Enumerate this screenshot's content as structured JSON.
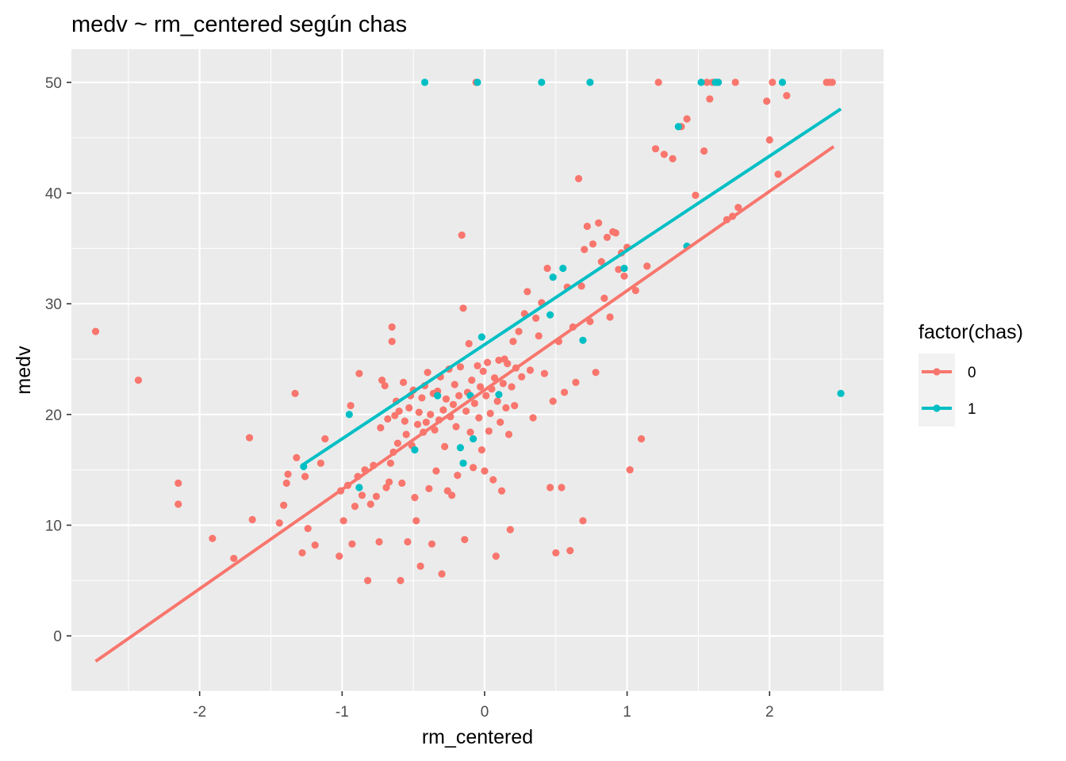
{
  "chart_data": {
    "type": "scatter",
    "title": "medv ~ rm_centered según chas",
    "xlabel": "rm_centered",
    "ylabel": "medv",
    "xlim": [
      -2.9,
      2.8
    ],
    "ylim": [
      -5,
      53
    ],
    "x_ticks": [
      -2,
      -1,
      0,
      1,
      2
    ],
    "y_ticks": [
      0,
      10,
      20,
      30,
      40,
      50
    ],
    "grid": true,
    "legend": {
      "title": "factor(chas)",
      "placement": "right"
    },
    "series": [
      {
        "name": "0",
        "color": "#F8766D",
        "points": [
          [
            -2.73,
            27.5
          ],
          [
            -2.43,
            23.1
          ],
          [
            -2.15,
            13.8
          ],
          [
            -2.15,
            11.9
          ],
          [
            -1.91,
            8.8
          ],
          [
            -1.76,
            7.0
          ],
          [
            -1.65,
            17.9
          ],
          [
            -1.63,
            10.5
          ],
          [
            -1.44,
            10.2
          ],
          [
            -1.41,
            11.8
          ],
          [
            -1.39,
            13.8
          ],
          [
            -1.38,
            14.6
          ],
          [
            -1.33,
            21.9
          ],
          [
            -1.32,
            16.1
          ],
          [
            -1.28,
            7.5
          ],
          [
            -1.26,
            14.4
          ],
          [
            -1.24,
            9.7
          ],
          [
            -1.19,
            8.2
          ],
          [
            -1.15,
            15.6
          ],
          [
            -1.12,
            17.8
          ],
          [
            -1.02,
            7.2
          ],
          [
            -1.01,
            13.1
          ],
          [
            -0.99,
            10.4
          ],
          [
            -0.96,
            13.6
          ],
          [
            -0.94,
            20.8
          ],
          [
            -0.93,
            8.3
          ],
          [
            -0.91,
            11.7
          ],
          [
            -0.89,
            14.4
          ],
          [
            -0.88,
            23.7
          ],
          [
            -0.86,
            12.7
          ],
          [
            -0.84,
            15.0
          ],
          [
            -0.82,
            5.0
          ],
          [
            -0.8,
            11.9
          ],
          [
            -0.78,
            15.4
          ],
          [
            -0.76,
            12.6
          ],
          [
            -0.74,
            8.5
          ],
          [
            -0.73,
            18.8
          ],
          [
            -0.72,
            23.1
          ],
          [
            -0.7,
            22.6
          ],
          [
            -0.69,
            13.4
          ],
          [
            -0.68,
            19.6
          ],
          [
            -0.67,
            13.9
          ],
          [
            -0.66,
            15.6
          ],
          [
            -0.65,
            27.9
          ],
          [
            -0.65,
            26.6
          ],
          [
            -0.64,
            16.6
          ],
          [
            -0.63,
            19.9
          ],
          [
            -0.62,
            21.2
          ],
          [
            -0.61,
            17.4
          ],
          [
            -0.6,
            20.3
          ],
          [
            -0.59,
            5.0
          ],
          [
            -0.58,
            13.8
          ],
          [
            -0.57,
            22.9
          ],
          [
            -0.56,
            19.4
          ],
          [
            -0.55,
            18.2
          ],
          [
            -0.54,
            8.5
          ],
          [
            -0.53,
            20.6
          ],
          [
            -0.52,
            21.7
          ],
          [
            -0.51,
            17.2
          ],
          [
            -0.5,
            22.2
          ],
          [
            -0.49,
            12.5
          ],
          [
            -0.48,
            10.4
          ],
          [
            -0.47,
            19.1
          ],
          [
            -0.46,
            20.2
          ],
          [
            -0.45,
            6.3
          ],
          [
            -0.44,
            21.5
          ],
          [
            -0.43,
            18.4
          ],
          [
            -0.42,
            22.6
          ],
          [
            -0.41,
            19.3
          ],
          [
            -0.4,
            23.8
          ],
          [
            -0.39,
            13.3
          ],
          [
            -0.38,
            20.0
          ],
          [
            -0.37,
            8.3
          ],
          [
            -0.36,
            21.9
          ],
          [
            -0.35,
            18.6
          ],
          [
            -0.34,
            14.9
          ],
          [
            -0.33,
            22.1
          ],
          [
            -0.32,
            19.5
          ],
          [
            -0.31,
            23.4
          ],
          [
            -0.3,
            5.6
          ],
          [
            -0.29,
            20.4
          ],
          [
            -0.28,
            17.1
          ],
          [
            -0.27,
            21.4
          ],
          [
            -0.26,
            13.1
          ],
          [
            -0.25,
            24.1
          ],
          [
            -0.24,
            19.8
          ],
          [
            -0.23,
            12.7
          ],
          [
            -0.22,
            20.9
          ],
          [
            -0.21,
            22.7
          ],
          [
            -0.2,
            18.9
          ],
          [
            -0.19,
            14.5
          ],
          [
            -0.18,
            21.7
          ],
          [
            -0.17,
            24.3
          ],
          [
            -0.16,
            36.2
          ],
          [
            -0.15,
            29.6
          ],
          [
            -0.14,
            8.7
          ],
          [
            -0.13,
            20.3
          ],
          [
            -0.12,
            22.0
          ],
          [
            -0.11,
            26.4
          ],
          [
            -0.1,
            18.4
          ],
          [
            -0.09,
            23.1
          ],
          [
            -0.08,
            15.2
          ],
          [
            -0.07,
            21.0
          ],
          [
            -0.06,
            50.0
          ],
          [
            -0.05,
            24.4
          ],
          [
            -0.04,
            19.7
          ],
          [
            -0.03,
            22.5
          ],
          [
            -0.02,
            16.8
          ],
          [
            -0.01,
            23.9
          ],
          [
            0.0,
            14.9
          ],
          [
            0.01,
            21.7
          ],
          [
            0.02,
            24.7
          ],
          [
            0.03,
            18.5
          ],
          [
            0.04,
            20.1
          ],
          [
            0.05,
            22.3
          ],
          [
            0.06,
            14.1
          ],
          [
            0.07,
            23.3
          ],
          [
            0.08,
            7.2
          ],
          [
            0.09,
            21.2
          ],
          [
            0.1,
            24.9
          ],
          [
            0.11,
            19.3
          ],
          [
            0.12,
            13.1
          ],
          [
            0.13,
            22.8
          ],
          [
            0.14,
            25.0
          ],
          [
            0.15,
            20.6
          ],
          [
            0.16,
            24.6
          ],
          [
            0.17,
            18.2
          ],
          [
            0.18,
            9.6
          ],
          [
            0.19,
            22.5
          ],
          [
            0.2,
            26.6
          ],
          [
            0.21,
            20.8
          ],
          [
            0.22,
            24.2
          ],
          [
            0.24,
            27.5
          ],
          [
            0.26,
            23.4
          ],
          [
            0.28,
            29.1
          ],
          [
            0.3,
            31.1
          ],
          [
            0.32,
            24.0
          ],
          [
            0.34,
            19.7
          ],
          [
            0.36,
            28.7
          ],
          [
            0.38,
            27.1
          ],
          [
            0.4,
            30.1
          ],
          [
            0.42,
            23.7
          ],
          [
            0.44,
            33.2
          ],
          [
            0.46,
            13.4
          ],
          [
            0.48,
            21.2
          ],
          [
            0.5,
            7.5
          ],
          [
            0.52,
            26.6
          ],
          [
            0.54,
            13.4
          ],
          [
            0.56,
            22.0
          ],
          [
            0.58,
            31.5
          ],
          [
            0.6,
            7.7
          ],
          [
            0.62,
            27.9
          ],
          [
            0.64,
            22.9
          ],
          [
            0.66,
            41.3
          ],
          [
            0.68,
            31.6
          ],
          [
            0.69,
            10.4
          ],
          [
            0.7,
            34.9
          ],
          [
            0.72,
            37.0
          ],
          [
            0.74,
            28.4
          ],
          [
            0.76,
            35.4
          ],
          [
            0.78,
            23.8
          ],
          [
            0.8,
            37.3
          ],
          [
            0.82,
            33.8
          ],
          [
            0.84,
            30.5
          ],
          [
            0.86,
            36.0
          ],
          [
            0.88,
            28.8
          ],
          [
            0.9,
            36.5
          ],
          [
            0.92,
            36.4
          ],
          [
            0.94,
            33.1
          ],
          [
            0.96,
            34.6
          ],
          [
            0.98,
            32.5
          ],
          [
            1.0,
            35.1
          ],
          [
            1.02,
            15.0
          ],
          [
            1.06,
            31.2
          ],
          [
            1.1,
            17.8
          ],
          [
            1.14,
            33.4
          ],
          [
            1.2,
            44.0
          ],
          [
            1.22,
            50.0
          ],
          [
            1.26,
            43.5
          ],
          [
            1.32,
            43.1
          ],
          [
            1.38,
            46.0
          ],
          [
            1.42,
            46.7
          ],
          [
            1.48,
            39.8
          ],
          [
            1.54,
            43.8
          ],
          [
            1.56,
            50.0
          ],
          [
            1.58,
            48.5
          ],
          [
            1.6,
            50.0
          ],
          [
            1.64,
            50.0
          ],
          [
            1.7,
            37.6
          ],
          [
            1.74,
            37.9
          ],
          [
            1.76,
            50.0
          ],
          [
            1.78,
            38.7
          ],
          [
            1.98,
            48.3
          ],
          [
            2.0,
            44.8
          ],
          [
            2.02,
            50.0
          ],
          [
            2.06,
            41.7
          ],
          [
            2.12,
            48.8
          ],
          [
            2.4,
            50.0
          ],
          [
            2.42,
            50.0
          ],
          [
            2.44,
            50.0
          ]
        ]
      },
      {
        "name": "1",
        "color": "#00BFC4",
        "points": [
          [
            -1.27,
            15.3
          ],
          [
            -0.95,
            20.0
          ],
          [
            -0.88,
            13.4
          ],
          [
            -0.49,
            16.8
          ],
          [
            -0.42,
            50.0
          ],
          [
            -0.33,
            21.7
          ],
          [
            -0.17,
            17.0
          ],
          [
            -0.15,
            15.6
          ],
          [
            -0.1,
            21.7
          ],
          [
            -0.08,
            17.8
          ],
          [
            -0.05,
            50.0
          ],
          [
            -0.02,
            27.0
          ],
          [
            0.1,
            21.8
          ],
          [
            0.4,
            50.0
          ],
          [
            0.46,
            29.0
          ],
          [
            0.48,
            32.4
          ],
          [
            0.55,
            33.2
          ],
          [
            0.69,
            26.7
          ],
          [
            0.74,
            50.0
          ],
          [
            0.98,
            33.2
          ],
          [
            1.36,
            46.0
          ],
          [
            1.42,
            35.2
          ],
          [
            1.52,
            50.0
          ],
          [
            1.62,
            50.0
          ],
          [
            1.64,
            50.0
          ],
          [
            2.09,
            50.0
          ],
          [
            2.5,
            21.9
          ]
        ]
      }
    ],
    "fit_lines": [
      {
        "name": "0",
        "x": [
          -2.73,
          2.45
        ],
        "y": [
          -2.3,
          44.2
        ]
      },
      {
        "name": "1",
        "x": [
          -1.27,
          2.5
        ],
        "y": [
          15.5,
          47.6
        ]
      }
    ]
  }
}
